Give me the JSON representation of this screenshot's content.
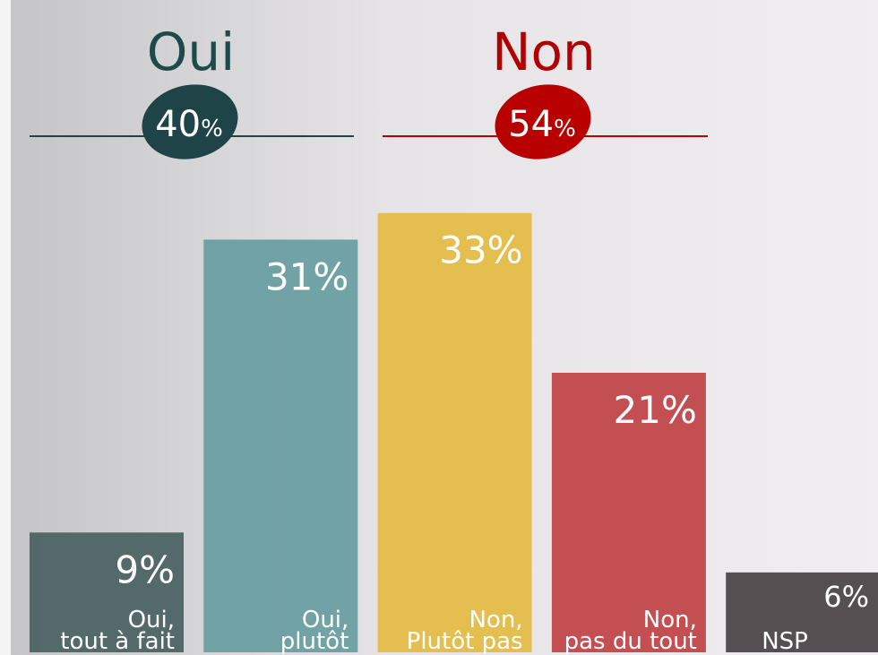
{
  "chart_data": {
    "type": "bar",
    "groups": [
      {
        "name": "Oui",
        "value": 40,
        "unit": "%",
        "color": "#1f4447",
        "title_color": "#1e4a4a"
      },
      {
        "name": "Non",
        "value": 54,
        "unit": "%",
        "color": "#b80000",
        "title_color": "#b00000"
      }
    ],
    "categories": [
      [
        "Oui,",
        "tout à fait"
      ],
      [
        "Oui,",
        "plutôt"
      ],
      [
        "Non,",
        "Plutôt pas"
      ],
      [
        "Non,",
        "pas du tout"
      ],
      [
        "NSP"
      ]
    ],
    "values": [
      9,
      31,
      33,
      21,
      6
    ],
    "value_labels": [
      "9%",
      "31%",
      "33%",
      "21%",
      "6%"
    ],
    "colors": [
      "#4d6464",
      "#6a9ea1",
      "#e4bc47",
      "#c2474a",
      "#4c4748"
    ],
    "ylim": [
      0,
      49
    ]
  }
}
